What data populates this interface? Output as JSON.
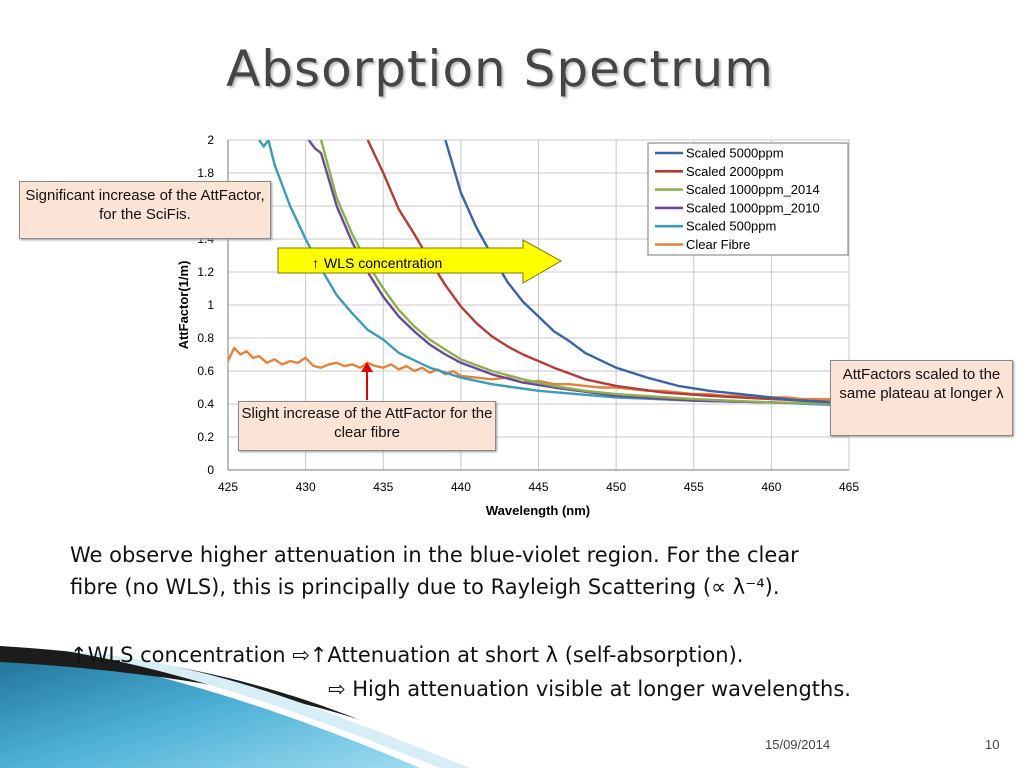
{
  "slide": {
    "title": "Absorption Spectrum",
    "date": "15/09/2014",
    "page_number": "10"
  },
  "callouts": {
    "scifi": "Significant increase of the AttFactor, for the SciFis.",
    "clear_fibre": "Slight increase of the AttFactor for the clear fibre",
    "plateau": "AttFactors scaled to the same plateau at longer λ",
    "wls_arrow": "WLS concentration"
  },
  "body": {
    "line1": "We observe higher attenuation in the blue-violet region. For the clear",
    "line2": "fibre (no WLS), this is principally due to Rayleigh Scattering (∝ λ⁻⁴).",
    "line3_a": "WLS concentration ⇨",
    "line3_b": "Attenuation at short λ (self-absorption).",
    "line4": "⇨ High attenuation visible at longer wavelengths.",
    "up_arrow": "↑"
  },
  "colors": {
    "5000": "#3b64a6",
    "2000": "#b03d39",
    "1000_2014": "#8db04e",
    "1000_2010": "#6a4a98",
    "500": "#3c9cb8",
    "clear": "#e2843e",
    "arrow_fill": "#ffff00",
    "callout_bg": "#fbe3d6",
    "red_arrow": "#e00000"
  },
  "chart_data": {
    "type": "line",
    "xlabel": "Wavelength (nm)",
    "ylabel": "AttFactor(1/m)",
    "xlim": [
      425,
      465
    ],
    "ylim": [
      0,
      2
    ],
    "xticks": [
      425,
      430,
      435,
      440,
      445,
      450,
      455,
      460,
      465
    ],
    "yticks": [
      0,
      0.2,
      0.4,
      0.6,
      0.8,
      1,
      1.2,
      1.4,
      1.6,
      1.8,
      2
    ],
    "ytick_labels": [
      "0",
      "0.2",
      "0.4",
      "0.6",
      "0.8",
      "1",
      "1.2",
      "1.4",
      "1.6",
      "1.8",
      "2"
    ],
    "grid": true,
    "legend": "top-right",
    "series": [
      {
        "name": "Scaled 5000ppm",
        "color_key": "5000",
        "x": [
          439,
          440,
          441,
          442,
          443,
          444,
          445,
          446,
          447,
          448,
          450,
          452,
          454,
          456,
          458,
          460,
          462,
          464,
          465
        ],
        "y": [
          2.0,
          1.68,
          1.47,
          1.3,
          1.14,
          1.02,
          0.93,
          0.84,
          0.78,
          0.71,
          0.62,
          0.56,
          0.51,
          0.48,
          0.46,
          0.44,
          0.42,
          0.41,
          0.4
        ]
      },
      {
        "name": "Scaled 2000ppm",
        "color_key": "2000",
        "x": [
          434,
          435,
          436,
          437,
          438,
          439,
          440,
          441,
          442,
          443,
          444,
          446,
          448,
          450,
          453,
          456,
          460,
          465
        ],
        "y": [
          2.0,
          1.8,
          1.58,
          1.43,
          1.27,
          1.12,
          0.99,
          0.89,
          0.81,
          0.75,
          0.7,
          0.62,
          0.55,
          0.51,
          0.47,
          0.45,
          0.43,
          0.41
        ]
      },
      {
        "name": "Scaled 1000ppm_2014",
        "color_key": "1000_2014",
        "x": [
          431,
          432,
          433,
          434,
          435,
          436,
          437,
          438,
          439,
          440,
          442,
          444,
          446,
          448,
          450,
          455,
          460,
          465
        ],
        "y": [
          2.0,
          1.65,
          1.43,
          1.25,
          1.1,
          0.97,
          0.87,
          0.79,
          0.73,
          0.67,
          0.6,
          0.55,
          0.51,
          0.48,
          0.46,
          0.43,
          0.41,
          0.4
        ]
      },
      {
        "name": "Scaled 1000ppm_2010",
        "color_key": "1000_2010",
        "x": [
          430.2,
          430.6,
          431,
          432,
          433,
          434,
          435,
          436,
          437,
          438,
          439,
          440,
          442,
          444,
          446,
          450,
          455,
          460,
          465
        ],
        "y": [
          2.0,
          1.95,
          1.92,
          1.6,
          1.38,
          1.2,
          1.05,
          0.93,
          0.84,
          0.76,
          0.7,
          0.65,
          0.58,
          0.53,
          0.5,
          0.45,
          0.42,
          0.41,
          0.4
        ]
      },
      {
        "name": "Scaled 500ppm",
        "color_key": "500",
        "x": [
          427,
          427.3,
          427.6,
          428,
          429,
          430,
          431,
          432,
          433,
          434,
          435,
          436,
          438,
          440,
          442,
          445,
          450,
          455,
          460,
          465
        ],
        "y": [
          2.0,
          1.96,
          2.0,
          1.85,
          1.6,
          1.4,
          1.22,
          1.06,
          0.95,
          0.85,
          0.79,
          0.71,
          0.62,
          0.56,
          0.52,
          0.48,
          0.44,
          0.42,
          0.41,
          0.39
        ]
      },
      {
        "name": "Clear Fibre",
        "color_key": "clear",
        "x": [
          425,
          425.4,
          425.8,
          426.2,
          426.6,
          427,
          427.5,
          428,
          428.5,
          429,
          429.5,
          430,
          430.5,
          431,
          431.5,
          432,
          432.5,
          433,
          433.5,
          434,
          434.5,
          435,
          435.5,
          436,
          436.5,
          437,
          437.5,
          438,
          438.5,
          439,
          439.5,
          440,
          441,
          442,
          443,
          444,
          445,
          446,
          447,
          448,
          449,
          450,
          451,
          452,
          453,
          454,
          455,
          456,
          457,
          458,
          459,
          460,
          461,
          462,
          463,
          464,
          465
        ],
        "y": [
          0.66,
          0.74,
          0.7,
          0.72,
          0.68,
          0.69,
          0.65,
          0.67,
          0.64,
          0.66,
          0.65,
          0.68,
          0.63,
          0.62,
          0.64,
          0.65,
          0.63,
          0.64,
          0.62,
          0.65,
          0.63,
          0.62,
          0.64,
          0.61,
          0.63,
          0.6,
          0.62,
          0.59,
          0.61,
          0.58,
          0.6,
          0.57,
          0.56,
          0.55,
          0.56,
          0.53,
          0.54,
          0.52,
          0.52,
          0.51,
          0.5,
          0.5,
          0.49,
          0.48,
          0.48,
          0.47,
          0.46,
          0.46,
          0.45,
          0.45,
          0.44,
          0.44,
          0.44,
          0.43,
          0.43,
          0.43,
          0.43
        ]
      }
    ]
  }
}
